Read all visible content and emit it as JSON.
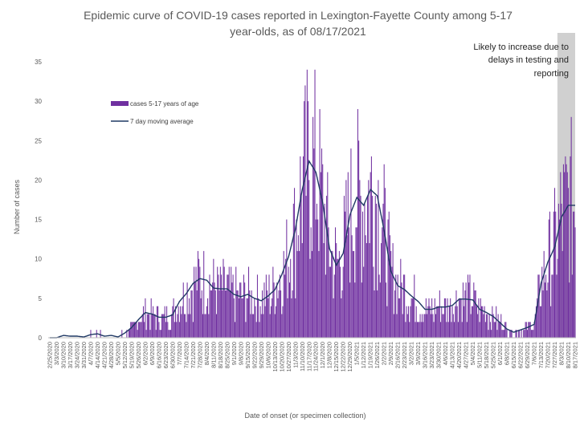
{
  "chart_data": {
    "type": "bar",
    "title_line1": "Epidemic curve of COVID-19 cases reported in Lexington-Fayette County among 5-17",
    "title_line2": "year-olds, as of 08/17/2021",
    "xlabel": "Date of onset (or specimen collection)",
    "ylabel": "Number of cases",
    "ylim": [
      0,
      35
    ],
    "yticks": [
      0,
      5,
      10,
      15,
      20,
      25,
      30,
      35
    ],
    "grid": false,
    "legend_position": "top-left",
    "colors": {
      "bars": "#7030a0",
      "line": "#1f3864",
      "shade": "#d0d0d0",
      "text": "#595959"
    },
    "x_tick_labels": [
      "2/25/2020",
      "3/3/2020",
      "3/10/2020",
      "3/17/2020",
      "3/24/2020",
      "3/31/2020",
      "4/7/2020",
      "4/14/2020",
      "4/21/2020",
      "4/28/2020",
      "5/5/2020",
      "5/12/2020",
      "5/19/2020",
      "5/26/2020",
      "6/2/2020",
      "6/9/2020",
      "6/16/2020",
      "6/23/2020",
      "6/30/2020",
      "7/7/2020",
      "7/14/2020",
      "7/21/2020",
      "7/28/2020",
      "8/4/2020",
      "8/11/2020",
      "8/18/2020",
      "8/25/2020",
      "9/1/2020",
      "9/8/2020",
      "9/15/2020",
      "9/22/2020",
      "9/29/2020",
      "10/6/2020",
      "10/13/2020",
      "10/20/2020",
      "10/27/2020",
      "11/3/2020",
      "11/10/2020",
      "11/17/2020",
      "11/24/2020",
      "12/1/2020",
      "12/8/2020",
      "12/15/2020",
      "12/22/2020",
      "12/29/2020",
      "1/5/2021",
      "1/12/2021",
      "1/19/2021",
      "1/26/2021",
      "2/2/2021",
      "2/9/2021",
      "2/16/2021",
      "2/23/2021",
      "3/2/2021",
      "3/9/2021",
      "3/16/2021",
      "3/23/2021",
      "3/30/2021",
      "4/6/2021",
      "4/13/2021",
      "4/20/2021",
      "4/27/2021",
      "5/4/2021",
      "5/11/2021",
      "5/18/2021",
      "5/25/2021",
      "6/1/2021",
      "6/8/2021",
      "6/15/2021",
      "6/22/2021",
      "6/29/2021",
      "7/6/2021",
      "7/13/2021",
      "7/20/2021",
      "7/27/2021",
      "8/3/2021",
      "8/10/2021",
      "8/17/2021"
    ],
    "series": [
      {
        "name": "cases 5-17 years of age",
        "type": "bar",
        "weekly_values": [
          0,
          0,
          0.3,
          0.2,
          0.2,
          0.1,
          0.4,
          0.5,
          0.2,
          0.3,
          0.1,
          0.6,
          1.3,
          2.3,
          3.2,
          3,
          2.6,
          2.6,
          2.9,
          4.6,
          5.6,
          6.9,
          7.5,
          7.3,
          6.3,
          6.2,
          6.2,
          5.5,
          5.2,
          5.5,
          5,
          4.7,
          5.3,
          6.1,
          8,
          10.3,
          13.8,
          18.8,
          22.4,
          21,
          17.1,
          11.3,
          9.2,
          10.7,
          15.6,
          17.8,
          16.8,
          18.8,
          18,
          13.6,
          8.4,
          6.6,
          6.1,
          5.3,
          4.6,
          3.6,
          3.6,
          3.9,
          3.9,
          4.1,
          4.9,
          4.9,
          4.8,
          3.6,
          3.2,
          2.7,
          1.9,
          1.1,
          0.7,
          1,
          1.3,
          1.7,
          6.9,
          9.6,
          11.5,
          15.3,
          16.8,
          16.8
        ]
      },
      {
        "name": "7 day moving average",
        "type": "line",
        "weekly_values": [
          0,
          0,
          0.3,
          0.2,
          0.2,
          0.1,
          0.4,
          0.5,
          0.2,
          0.3,
          0.1,
          0.6,
          1.3,
          2.3,
          3.2,
          3,
          2.6,
          2.6,
          2.9,
          4.6,
          5.6,
          6.9,
          7.5,
          7.3,
          6.3,
          6.2,
          6.2,
          5.5,
          5.2,
          5.5,
          5,
          4.7,
          5.3,
          6.1,
          8,
          10.3,
          13.8,
          18.8,
          22.4,
          21,
          17.1,
          11.3,
          9.2,
          10.7,
          15.6,
          17.8,
          16.8,
          18.8,
          18,
          13.6,
          8.4,
          6.6,
          6.1,
          5.3,
          4.6,
          3.6,
          3.6,
          3.9,
          3.9,
          4.1,
          4.9,
          4.9,
          4.8,
          3.6,
          3.2,
          2.7,
          1.9,
          1.1,
          0.7,
          1,
          1.3,
          1.7,
          6.9,
          9.6,
          11.5,
          15.3,
          16.8,
          16.8
        ]
      }
    ],
    "annotation": {
      "lines": [
        "Likely to increase due to",
        "delays in testing and",
        "reporting"
      ],
      "shaded_from": "7/30/2021",
      "shaded_to": "8/17/2021"
    }
  }
}
